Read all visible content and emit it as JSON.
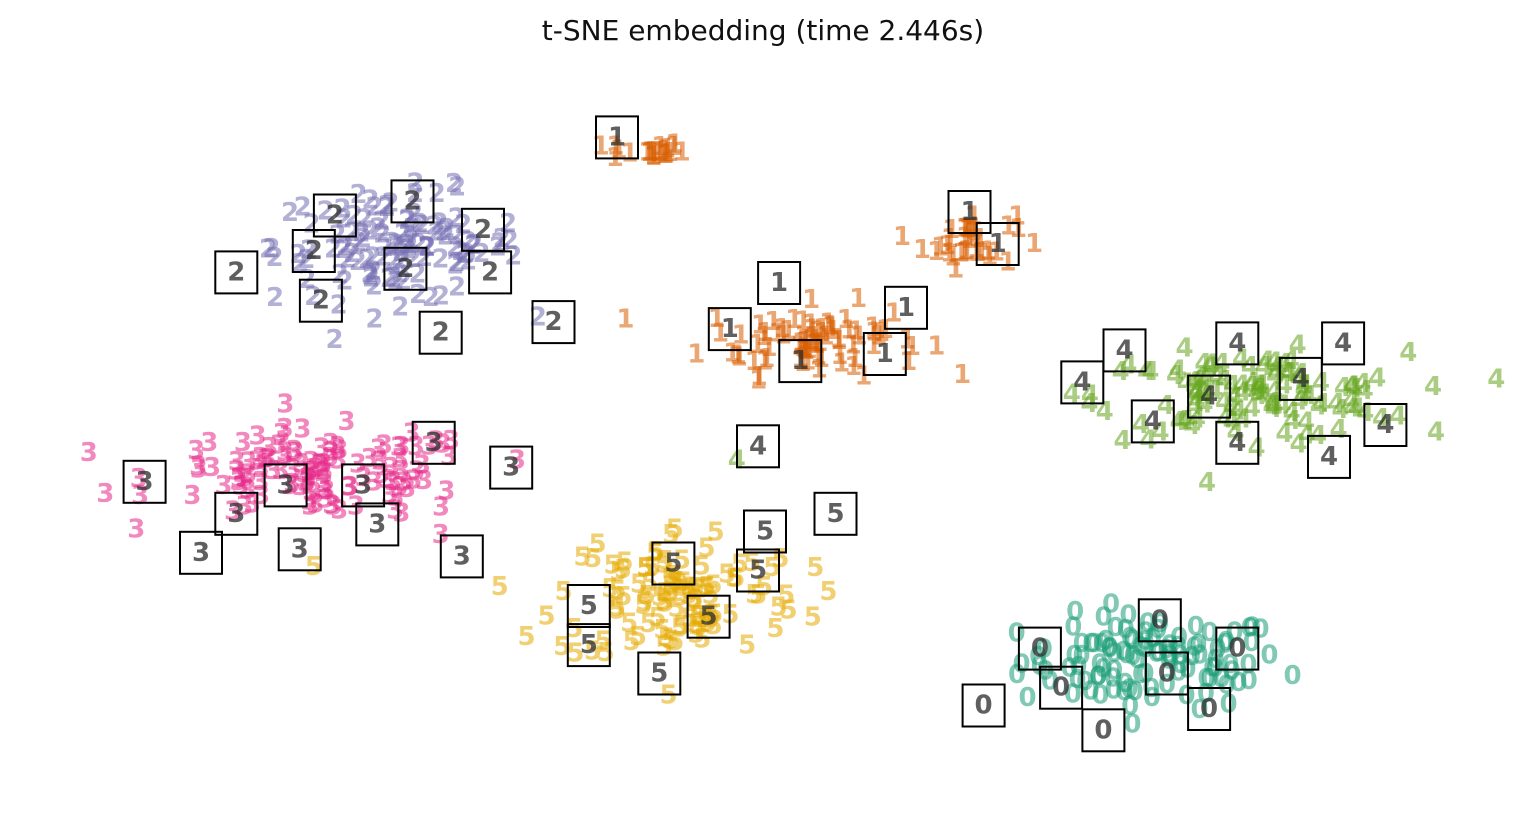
{
  "chart_data": {
    "type": "scatter",
    "title": "t-SNE embedding (time 2.446s)",
    "xlabel": "",
    "ylabel": "",
    "axes_visible": false,
    "grid": false,
    "xlim": [
      0,
      100
    ],
    "ylim": [
      0,
      100
    ],
    "colors": {
      "0": "#1b9e77",
      "1": "#d95f02",
      "2": "#7570b3",
      "3": "#e7298a",
      "4": "#66a61e",
      "5": "#e6ab02"
    },
    "clusters": [
      {
        "label": "0",
        "center": [
          77.5,
          16.5
        ],
        "spread": [
          8.5,
          6.0
        ],
        "count": 110
      },
      {
        "label": "1",
        "center": [
          41.5,
          88.5
        ],
        "spread": [
          2.5,
          1.2
        ],
        "count": 22
      },
      {
        "label": "1",
        "center": [
          53.5,
          62.0
        ],
        "spread": [
          7.0,
          4.5
        ],
        "count": 80
      },
      {
        "label": "1",
        "center": [
          64.5,
          76.0
        ],
        "spread": [
          3.0,
          3.5
        ],
        "count": 35
      },
      {
        "label": "2",
        "center": [
          24.0,
          75.0
        ],
        "spread": [
          8.0,
          7.0
        ],
        "count": 120
      },
      {
        "label": "3",
        "center": [
          18.5,
          43.0
        ],
        "spread": [
          10.5,
          5.5
        ],
        "count": 120
      },
      {
        "label": "4",
        "center": [
          84.5,
          54.0
        ],
        "spread": [
          10.0,
          5.5
        ],
        "count": 120
      },
      {
        "label": "5",
        "center": [
          44.0,
          26.0
        ],
        "spread": [
          8.0,
          9.0
        ],
        "count": 110
      }
    ],
    "outliers": [
      {
        "label": "4",
        "x": 48.0,
        "y": 45.0
      },
      {
        "label": "3",
        "x": 27.0,
        "y": 34.5
      },
      {
        "label": "5",
        "x": 18.0,
        "y": 30.0
      }
    ],
    "thumbnails": [
      {
        "label": "1",
        "x": 39.5,
        "y": 90.5
      },
      {
        "label": "2",
        "x": 19.5,
        "y": 79.5
      },
      {
        "label": "2",
        "x": 25.0,
        "y": 81.5
      },
      {
        "label": "2",
        "x": 30.0,
        "y": 77.5
      },
      {
        "label": "2",
        "x": 18.0,
        "y": 74.5
      },
      {
        "label": "2",
        "x": 12.5,
        "y": 71.5
      },
      {
        "label": "2",
        "x": 24.5,
        "y": 72.0
      },
      {
        "label": "2",
        "x": 30.5,
        "y": 71.5
      },
      {
        "label": "2",
        "x": 18.5,
        "y": 67.5
      },
      {
        "label": "2",
        "x": 27.0,
        "y": 63.0
      },
      {
        "label": "2",
        "x": 35.0,
        "y": 64.5
      },
      {
        "label": "1",
        "x": 64.5,
        "y": 80.0
      },
      {
        "label": "1",
        "x": 66.5,
        "y": 75.5
      },
      {
        "label": "1",
        "x": 51.0,
        "y": 70.0
      },
      {
        "label": "1",
        "x": 60.0,
        "y": 66.5
      },
      {
        "label": "1",
        "x": 47.5,
        "y": 63.5
      },
      {
        "label": "1",
        "x": 52.5,
        "y": 59.0
      },
      {
        "label": "1",
        "x": 58.5,
        "y": 60.0
      },
      {
        "label": "4",
        "x": 75.5,
        "y": 60.5
      },
      {
        "label": "4",
        "x": 83.5,
        "y": 61.5
      },
      {
        "label": "4",
        "x": 91.0,
        "y": 61.5
      },
      {
        "label": "4",
        "x": 72.5,
        "y": 56.0
      },
      {
        "label": "4",
        "x": 88.0,
        "y": 56.5
      },
      {
        "label": "4",
        "x": 81.5,
        "y": 54.0
      },
      {
        "label": "4",
        "x": 77.5,
        "y": 50.5
      },
      {
        "label": "4",
        "x": 94.0,
        "y": 50.0
      },
      {
        "label": "4",
        "x": 83.5,
        "y": 47.5
      },
      {
        "label": "4",
        "x": 90.0,
        "y": 45.5
      },
      {
        "label": "4",
        "x": 49.5,
        "y": 47.0
      },
      {
        "label": "3",
        "x": 26.5,
        "y": 47.5
      },
      {
        "label": "3",
        "x": 32.0,
        "y": 44.0
      },
      {
        "label": "3",
        "x": 6.0,
        "y": 42.0
      },
      {
        "label": "3",
        "x": 16.0,
        "y": 41.5
      },
      {
        "label": "3",
        "x": 21.5,
        "y": 41.5
      },
      {
        "label": "3",
        "x": 12.5,
        "y": 37.5
      },
      {
        "label": "3",
        "x": 22.5,
        "y": 36.0
      },
      {
        "label": "3",
        "x": 10.0,
        "y": 32.0
      },
      {
        "label": "3",
        "x": 17.0,
        "y": 32.5
      },
      {
        "label": "3",
        "x": 28.5,
        "y": 31.5
      },
      {
        "label": "5",
        "x": 55.0,
        "y": 37.5
      },
      {
        "label": "5",
        "x": 50.0,
        "y": 35.0
      },
      {
        "label": "5",
        "x": 43.5,
        "y": 30.5
      },
      {
        "label": "5",
        "x": 49.5,
        "y": 29.5
      },
      {
        "label": "5",
        "x": 37.5,
        "y": 24.5
      },
      {
        "label": "5",
        "x": 46.0,
        "y": 23.0
      },
      {
        "label": "5",
        "x": 37.5,
        "y": 19.0
      },
      {
        "label": "5",
        "x": 42.5,
        "y": 15.0
      },
      {
        "label": "0",
        "x": 78.0,
        "y": 22.5
      },
      {
        "label": "0",
        "x": 69.5,
        "y": 18.5
      },
      {
        "label": "0",
        "x": 83.5,
        "y": 18.5
      },
      {
        "label": "0",
        "x": 78.5,
        "y": 15.0
      },
      {
        "label": "0",
        "x": 71.0,
        "y": 13.0
      },
      {
        "label": "0",
        "x": 65.5,
        "y": 10.5
      },
      {
        "label": "0",
        "x": 81.5,
        "y": 10.0
      },
      {
        "label": "0",
        "x": 74.0,
        "y": 7.0
      }
    ]
  }
}
